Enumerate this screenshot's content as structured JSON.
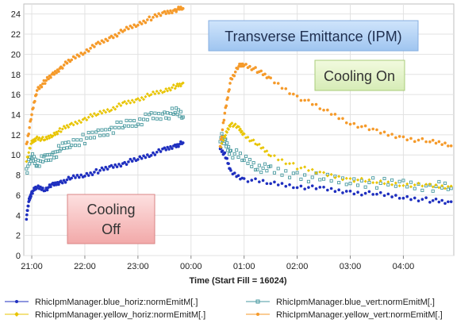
{
  "chart_data": {
    "type": "scatter",
    "title": "Transverse Emittance (IPM)",
    "xlabel": "Time (Start Fill = 16024)",
    "ylabel": "",
    "x_ticks": [
      "21:00",
      "22:00",
      "23:00",
      "00:00",
      "01:00",
      "02:00",
      "03:00",
      "04:00"
    ],
    "x_tick_hours": [
      21,
      22,
      23,
      24,
      25,
      26,
      27,
      28
    ],
    "xlim": [
      20.85,
      28.95
    ],
    "ylim": [
      0,
      25
    ],
    "y_ticks": [
      0,
      2,
      4,
      6,
      8,
      10,
      12,
      14,
      16,
      18,
      20,
      22,
      24
    ],
    "grid": true,
    "legend_position": "bottom",
    "annotations": [
      {
        "text": "Cooling Off",
        "lines": [
          "Cooling",
          "Off"
        ]
      },
      {
        "text": "Cooling On",
        "lines": [
          "Cooling On"
        ]
      }
    ],
    "series": [
      {
        "name": "RhicIpmManager.blue_horiz:normEmitM[.]",
        "color": "#1f2fbf",
        "marker": "circle",
        "points": [
          [
            20.9,
            3.8
          ],
          [
            20.95,
            5.5
          ],
          [
            21.0,
            6.3
          ],
          [
            21.1,
            6.8
          ],
          [
            21.25,
            6.6
          ],
          [
            21.4,
            7.0
          ],
          [
            21.55,
            7.3
          ],
          [
            21.75,
            7.7
          ],
          [
            22.0,
            8.0
          ],
          [
            22.25,
            8.4
          ],
          [
            22.5,
            8.8
          ],
          [
            22.75,
            9.2
          ],
          [
            23.0,
            9.6
          ],
          [
            23.25,
            10.1
          ],
          [
            23.5,
            10.5
          ],
          [
            23.7,
            10.9
          ],
          [
            23.85,
            11.2
          ],
          [
            24.55,
            10.7
          ],
          [
            24.65,
            9.9
          ],
          [
            24.75,
            8.3
          ],
          [
            25.0,
            7.6
          ],
          [
            25.5,
            7.2
          ],
          [
            26.0,
            6.9
          ],
          [
            26.5,
            6.6
          ],
          [
            27.0,
            6.3
          ],
          [
            27.5,
            6.1
          ],
          [
            28.0,
            5.8
          ],
          [
            28.5,
            5.5
          ],
          [
            28.9,
            5.2
          ]
        ]
      },
      {
        "name": "RhicIpmManager.blue_vert:normEmitM[.]",
        "color": "#4a9aa0",
        "marker": "square",
        "points": [
          [
            20.9,
            8.5
          ],
          [
            21.0,
            9.8
          ],
          [
            21.1,
            9.3
          ],
          [
            21.25,
            9.5
          ],
          [
            21.4,
            10.0
          ],
          [
            21.55,
            10.6
          ],
          [
            21.75,
            11.2
          ],
          [
            22.0,
            11.6
          ],
          [
            22.25,
            12.1
          ],
          [
            22.5,
            12.6
          ],
          [
            22.75,
            13.0
          ],
          [
            23.0,
            13.4
          ],
          [
            23.25,
            13.7
          ],
          [
            23.5,
            14.0
          ],
          [
            23.7,
            14.2
          ],
          [
            23.85,
            14.0
          ],
          [
            24.55,
            11.8
          ],
          [
            24.65,
            11.2
          ],
          [
            24.75,
            10.3
          ],
          [
            25.0,
            9.6
          ],
          [
            25.25,
            8.9
          ],
          [
            25.5,
            8.4
          ],
          [
            26.0,
            8.0
          ],
          [
            26.5,
            7.6
          ],
          [
            27.0,
            7.4
          ],
          [
            27.5,
            7.2
          ],
          [
            28.0,
            7.1
          ],
          [
            28.5,
            6.9
          ],
          [
            28.9,
            6.8
          ]
        ]
      },
      {
        "name": "RhicIpmManager.yellow_horiz:normEmitM[.]",
        "color": "#e8c400",
        "marker": "diamond",
        "points": [
          [
            20.9,
            9.5
          ],
          [
            21.0,
            11.2
          ],
          [
            21.1,
            11.7
          ],
          [
            21.25,
            11.5
          ],
          [
            21.4,
            12.0
          ],
          [
            21.55,
            12.5
          ],
          [
            21.75,
            13.0
          ],
          [
            22.0,
            13.6
          ],
          [
            22.25,
            14.1
          ],
          [
            22.5,
            14.6
          ],
          [
            22.75,
            15.1
          ],
          [
            23.0,
            15.5
          ],
          [
            23.25,
            16.0
          ],
          [
            23.5,
            16.4
          ],
          [
            23.7,
            16.8
          ],
          [
            23.85,
            17.0
          ],
          [
            24.55,
            10.8
          ],
          [
            24.65,
            12.0
          ],
          [
            24.75,
            13.2
          ],
          [
            24.9,
            12.6
          ],
          [
            25.0,
            12.0
          ],
          [
            25.25,
            11.0
          ],
          [
            25.5,
            10.0
          ],
          [
            26.0,
            8.8
          ],
          [
            26.5,
            8.1
          ],
          [
            27.0,
            7.6
          ],
          [
            27.5,
            7.3
          ],
          [
            28.0,
            7.1
          ],
          [
            28.5,
            6.9
          ],
          [
            28.9,
            6.8
          ]
        ]
      },
      {
        "name": "RhicIpmManager.yellow_vert:normEmitM[.]",
        "color": "#f59a2a",
        "marker": "circle",
        "points": [
          [
            20.9,
            11.0
          ],
          [
            21.0,
            14.0
          ],
          [
            21.1,
            16.5
          ],
          [
            21.25,
            17.3
          ],
          [
            21.4,
            18.0
          ],
          [
            21.55,
            18.7
          ],
          [
            21.75,
            19.5
          ],
          [
            22.0,
            20.3
          ],
          [
            22.25,
            21.0
          ],
          [
            22.5,
            21.7
          ],
          [
            22.75,
            22.4
          ],
          [
            23.0,
            23.0
          ],
          [
            23.25,
            23.6
          ],
          [
            23.5,
            24.1
          ],
          [
            23.7,
            24.4
          ],
          [
            23.85,
            24.6
          ],
          [
            24.55,
            11.0
          ],
          [
            24.65,
            14.5
          ],
          [
            24.75,
            17.5
          ],
          [
            24.9,
            18.8
          ],
          [
            25.0,
            19.0
          ],
          [
            25.25,
            18.4
          ],
          [
            25.5,
            17.5
          ],
          [
            26.0,
            15.8
          ],
          [
            26.5,
            14.5
          ],
          [
            27.0,
            13.2
          ],
          [
            27.5,
            12.3
          ],
          [
            28.0,
            11.7
          ],
          [
            28.5,
            11.3
          ],
          [
            28.9,
            11.0
          ]
        ]
      }
    ]
  }
}
